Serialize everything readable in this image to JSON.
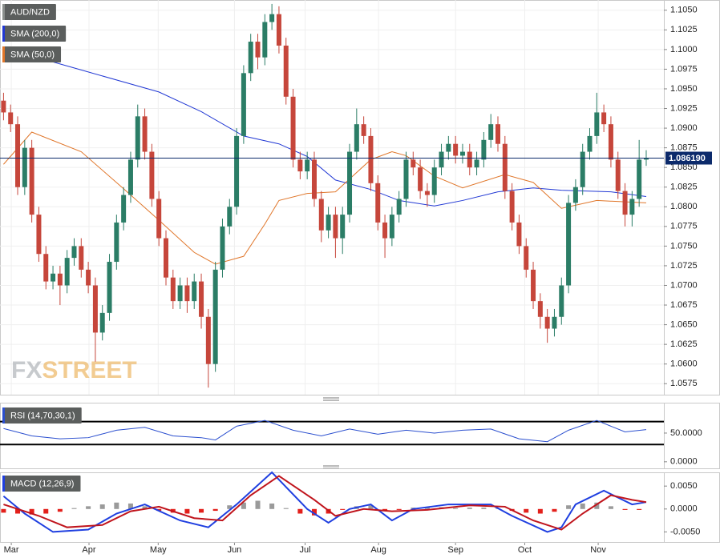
{
  "chart_data": [
    {
      "type": "candlestick",
      "name": "AUD/NZD",
      "xlim": [
        -0.5,
        93.5
      ],
      "xticks": [
        {
          "value": 1.1,
          "label": "Mar"
        },
        {
          "value": 12.1,
          "label": "Apr"
        },
        {
          "value": 21.9,
          "label": "May"
        },
        {
          "value": 32.7,
          "label": "Jun"
        },
        {
          "value": 42.7,
          "label": "Jul"
        },
        {
          "value": 53.1,
          "label": "Aug"
        },
        {
          "value": 64.0,
          "label": "Sep"
        },
        {
          "value": 73.8,
          "label": "Oct"
        },
        {
          "value": 84.2,
          "label": "Nov"
        }
      ],
      "ylim": [
        1.0561,
        1.1063
      ],
      "yticks": [
        {
          "value": 1.105,
          "label": "1.1050"
        },
        {
          "value": 1.1025,
          "label": "1.1025"
        },
        {
          "value": 1.1,
          "label": "1.1000"
        },
        {
          "value": 1.0975,
          "label": "1.0975"
        },
        {
          "value": 1.095,
          "label": "1.0950"
        },
        {
          "value": 1.0925,
          "label": "1.0925"
        },
        {
          "value": 1.09,
          "label": "1.0900"
        },
        {
          "value": 1.0875,
          "label": "1.0875"
        },
        {
          "value": 1.085,
          "label": "1.0850"
        },
        {
          "value": 1.0825,
          "label": "1.0825"
        },
        {
          "value": 1.08,
          "label": "1.0800"
        },
        {
          "value": 1.0775,
          "label": "1.0775"
        },
        {
          "value": 1.075,
          "label": "1.0750"
        },
        {
          "value": 1.0725,
          "label": "1.0725"
        },
        {
          "value": 1.07,
          "label": "1.0700"
        },
        {
          "value": 1.0675,
          "label": "1.0675"
        },
        {
          "value": 1.065,
          "label": "1.0650"
        },
        {
          "value": 1.0625,
          "label": "1.0625"
        },
        {
          "value": 1.06,
          "label": "1.0600"
        },
        {
          "value": 1.0575,
          "label": "1.0575"
        }
      ],
      "grid": true,
      "up_color": "#2b7d66",
      "down_color": "#c6463b",
      "legend_color": "#8a8f8c",
      "open": [
        1.0935,
        1.092,
        1.0905,
        1.0825,
        1.0875,
        1.079,
        1.074,
        1.0705,
        1.0715,
        1.07,
        1.0735,
        1.075,
        1.072,
        1.07,
        1.064,
        1.0665,
        1.073,
        1.078,
        1.0815,
        1.086,
        1.0915,
        1.087,
        1.081,
        1.076,
        1.071,
        1.068,
        1.07,
        1.068,
        1.0705,
        1.066,
        1.06,
        1.072,
        1.0775,
        1.08,
        1.089,
        1.097,
        1.101,
        1.099,
        1.1035,
        1.1045,
        1.1005,
        1.094,
        1.086,
        1.0845,
        1.086,
        1.081,
        1.077,
        1.079,
        1.076,
        1.079,
        1.087,
        1.0905,
        1.089,
        1.083,
        1.078,
        1.076,
        1.079,
        1.081,
        1.086,
        1.085,
        1.082,
        1.0815,
        1.085,
        1.087,
        1.088,
        1.0865,
        1.087,
        1.085,
        1.086,
        1.0885,
        1.0905,
        1.088,
        1.082,
        1.078,
        1.075,
        1.072,
        1.068,
        1.066,
        1.0645,
        1.066,
        1.07,
        1.0805,
        1.0825,
        1.087,
        1.089,
        1.092,
        1.0905,
        1.086,
        1.082,
        1.079,
        1.081,
        1.086
      ],
      "high": [
        1.0945,
        1.093,
        1.0915,
        1.0885,
        1.0885,
        1.08,
        1.075,
        1.0725,
        1.0725,
        1.0745,
        1.076,
        1.076,
        1.073,
        1.071,
        1.0675,
        1.074,
        1.079,
        1.0825,
        1.087,
        1.093,
        1.0925,
        1.088,
        1.082,
        1.077,
        1.072,
        1.071,
        1.071,
        1.0715,
        1.0715,
        1.067,
        1.073,
        1.0785,
        1.081,
        1.09,
        1.098,
        1.102,
        1.102,
        1.1045,
        1.1058,
        1.1055,
        1.1015,
        1.095,
        1.087,
        1.087,
        1.087,
        1.082,
        1.08,
        1.08,
        1.08,
        1.088,
        1.0925,
        1.0915,
        1.09,
        1.084,
        1.079,
        1.08,
        1.082,
        1.087,
        1.087,
        1.086,
        1.083,
        1.086,
        1.088,
        1.089,
        1.089,
        1.088,
        1.088,
        1.087,
        1.0895,
        1.0918,
        1.0915,
        1.089,
        1.083,
        1.079,
        1.076,
        1.073,
        1.069,
        1.067,
        1.067,
        1.071,
        1.0815,
        1.0835,
        1.088,
        1.09,
        1.0945,
        1.093,
        1.0915,
        1.087,
        1.083,
        1.082,
        1.0885,
        1.0872
      ],
      "low": [
        1.091,
        1.0895,
        1.0815,
        1.0815,
        1.078,
        1.073,
        1.0695,
        1.0695,
        1.0675,
        1.069,
        1.0725,
        1.071,
        1.069,
        1.0603,
        1.063,
        1.0655,
        1.072,
        1.077,
        1.0805,
        1.085,
        1.086,
        1.08,
        1.075,
        1.07,
        1.067,
        1.067,
        1.0665,
        1.067,
        1.0645,
        1.057,
        1.059,
        1.071,
        1.0765,
        1.079,
        1.088,
        1.096,
        1.0975,
        1.098,
        1.1025,
        1.0995,
        1.093,
        1.085,
        1.0835,
        1.0835,
        1.08,
        1.0755,
        1.076,
        1.0735,
        1.074,
        1.078,
        1.086,
        1.088,
        1.082,
        1.077,
        1.0735,
        1.075,
        1.078,
        1.08,
        1.084,
        1.081,
        1.08,
        1.0805,
        1.084,
        1.086,
        1.0855,
        1.0855,
        1.084,
        1.084,
        1.085,
        1.0875,
        1.087,
        1.081,
        1.077,
        1.074,
        1.071,
        1.067,
        1.0645,
        1.0627,
        1.0635,
        1.065,
        1.069,
        1.0795,
        1.0815,
        1.086,
        1.088,
        1.0895,
        1.085,
        1.081,
        1.0775,
        1.0775,
        1.08,
        1.0852
      ],
      "close": [
        1.092,
        1.0905,
        1.0825,
        1.0875,
        1.079,
        1.074,
        1.0705,
        1.0715,
        1.07,
        1.0735,
        1.075,
        1.072,
        1.07,
        1.064,
        1.0665,
        1.073,
        1.078,
        1.0815,
        1.086,
        1.0915,
        1.087,
        1.081,
        1.076,
        1.071,
        1.068,
        1.07,
        1.068,
        1.0705,
        1.066,
        1.06,
        1.072,
        1.0775,
        1.08,
        1.089,
        1.097,
        1.101,
        1.099,
        1.1035,
        1.1045,
        1.1005,
        1.094,
        1.086,
        1.0845,
        1.086,
        1.081,
        1.077,
        1.079,
        1.076,
        1.079,
        1.087,
        1.0905,
        1.089,
        1.083,
        1.078,
        1.076,
        1.079,
        1.081,
        1.086,
        1.085,
        1.082,
        1.0815,
        1.085,
        1.087,
        1.088,
        1.0865,
        1.087,
        1.085,
        1.086,
        1.0885,
        1.0905,
        1.088,
        1.082,
        1.078,
        1.075,
        1.072,
        1.068,
        1.066,
        1.0645,
        1.066,
        1.07,
        1.0805,
        1.0825,
        1.087,
        1.089,
        1.092,
        1.0905,
        1.086,
        1.082,
        1.079,
        1.081,
        1.086,
        1.0862
      ],
      "overlays": [
        {
          "name": "SMA (200,0)",
          "color": "#2138d4",
          "x": [
            0,
            11,
            22,
            28,
            34,
            39,
            43,
            47,
            52,
            56,
            61,
            65,
            70,
            75,
            79,
            86,
            91
          ],
          "values": [
            1.1002,
            1.0974,
            1.0946,
            1.0921,
            1.089,
            1.088,
            1.0864,
            1.0834,
            1.0822,
            1.0808,
            1.0801,
            1.0808,
            1.0819,
            1.0824,
            1.0821,
            1.0819,
            1.0813
          ]
        },
        {
          "name": "SMA (50,0)",
          "color": "#e0762a",
          "x": [
            0,
            4,
            11,
            17,
            22,
            27,
            30,
            34,
            37,
            39,
            43,
            47,
            52,
            55,
            57,
            61,
            65,
            71,
            75,
            79,
            84,
            91
          ],
          "values": [
            1.0854,
            1.0895,
            1.087,
            1.0823,
            1.0783,
            1.0742,
            1.0727,
            1.0737,
            1.0778,
            1.0808,
            1.0817,
            1.0819,
            1.086,
            1.087,
            1.0865,
            1.0839,
            1.0824,
            1.0841,
            1.0831,
            1.0798,
            1.0808,
            1.0805
          ]
        }
      ],
      "current_price": 1.08619,
      "current_price_label": "1.086190",
      "current_price_color": "#0c2a6b",
      "watermark": [
        "FX",
        "STREET"
      ]
    },
    {
      "type": "line",
      "name": "RSI (14,70,30,1)",
      "legend_color": "#2b4fcf",
      "xlim": [
        -0.5,
        93.5
      ],
      "ylim": [
        -11.4,
        102.9
      ],
      "yticks": [
        {
          "value": 50,
          "label": "50.0000"
        },
        {
          "value": 0,
          "label": "0.0000"
        }
      ],
      "levels": [
        70,
        30
      ],
      "series": [
        {
          "color": "#2b4fcf",
          "x": [
            0,
            4,
            8,
            12,
            16,
            20,
            24,
            28,
            30,
            33,
            37,
            41,
            45,
            49,
            53,
            57,
            61,
            65,
            69,
            73,
            77,
            80,
            84,
            88,
            91
          ],
          "values": [
            58,
            45,
            40,
            42,
            55,
            60,
            45,
            42,
            38,
            62,
            72,
            55,
            45,
            57,
            48,
            55,
            50,
            55,
            57,
            40,
            35,
            55,
            72,
            52,
            56
          ]
        }
      ]
    },
    {
      "type": "macd",
      "name": "MACD (12,26,9)",
      "legend_color": "#1f3fe0",
      "xlim": [
        -0.5,
        93.5
      ],
      "ylim": [
        -0.0072,
        0.008
      ],
      "yticks": [
        {
          "value": 0.005,
          "label": "0.0050"
        },
        {
          "value": 0,
          "label": "0.0000"
        },
        {
          "value": -0.005,
          "label": "-0.0050"
        }
      ],
      "series": [
        {
          "color": "#1f3fe0",
          "x": [
            0,
            3,
            7,
            12,
            16,
            20,
            25,
            29,
            33,
            38,
            43,
            46,
            49,
            52,
            55,
            58,
            63,
            69,
            72,
            77,
            79,
            81,
            85,
            87,
            89,
            91
          ],
          "values": [
            0.0028,
            -0.001,
            -0.005,
            -0.0045,
            -0.001,
            0.001,
            -0.0025,
            -0.004,
            0.001,
            0.008,
            0.0,
            -0.003,
            0.0,
            0.001,
            -0.0025,
            0.0,
            0.001,
            0.001,
            -0.0015,
            -0.005,
            -0.004,
            0.001,
            0.004,
            0.0025,
            0.001,
            0.0015
          ]
        },
        {
          "color": "#c0141c",
          "x": [
            0,
            5,
            9,
            14,
            18,
            22,
            27,
            31,
            35,
            39,
            44,
            47,
            51,
            55,
            60,
            66,
            71,
            75,
            79,
            82,
            86,
            89,
            91
          ],
          "values": [
            0.001,
            -0.0015,
            -0.004,
            -0.0035,
            -0.0005,
            0.0005,
            -0.002,
            -0.0025,
            0.003,
            0.0072,
            0.002,
            -0.0015,
            0.0,
            -0.0005,
            -0.0002,
            0.0008,
            0.0005,
            -0.0025,
            -0.0045,
            -0.001,
            0.003,
            0.002,
            0.0015
          ]
        }
      ],
      "histogram": {
        "up_color": "#9a9a9a",
        "down_color": "#e3201b",
        "x": [
          0,
          2,
          4,
          6,
          8,
          10,
          12,
          14,
          16,
          18,
          20,
          22,
          24,
          26,
          28,
          30,
          32,
          34,
          36,
          38,
          40,
          42,
          44,
          46,
          48,
          50,
          52,
          54,
          56,
          58,
          60,
          62,
          64,
          66,
          68,
          70,
          72,
          74,
          76,
          78,
          80,
          82,
          84,
          86,
          88,
          90
        ],
        "values": [
          -0.0008,
          -0.001,
          -0.0012,
          -0.001,
          -0.0006,
          0.0002,
          0.0006,
          0.001,
          0.0014,
          0.0012,
          0.0006,
          -0.0004,
          -0.0008,
          -0.001,
          -0.0008,
          -0.0004,
          0.0008,
          0.0014,
          0.0018,
          0.0012,
          0.0002,
          -0.001,
          -0.0014,
          -0.001,
          -0.0002,
          0.0006,
          0.0008,
          -0.0004,
          -0.0002,
          0.0003,
          0.0004,
          0.0004,
          0.0002,
          0.0003,
          0.0003,
          0.0001,
          -0.0004,
          -0.0008,
          -0.001,
          -0.0006,
          0.0008,
          0.0012,
          0.0014,
          0.0006,
          -0.0002,
          -0.0002
        ]
      }
    }
  ]
}
